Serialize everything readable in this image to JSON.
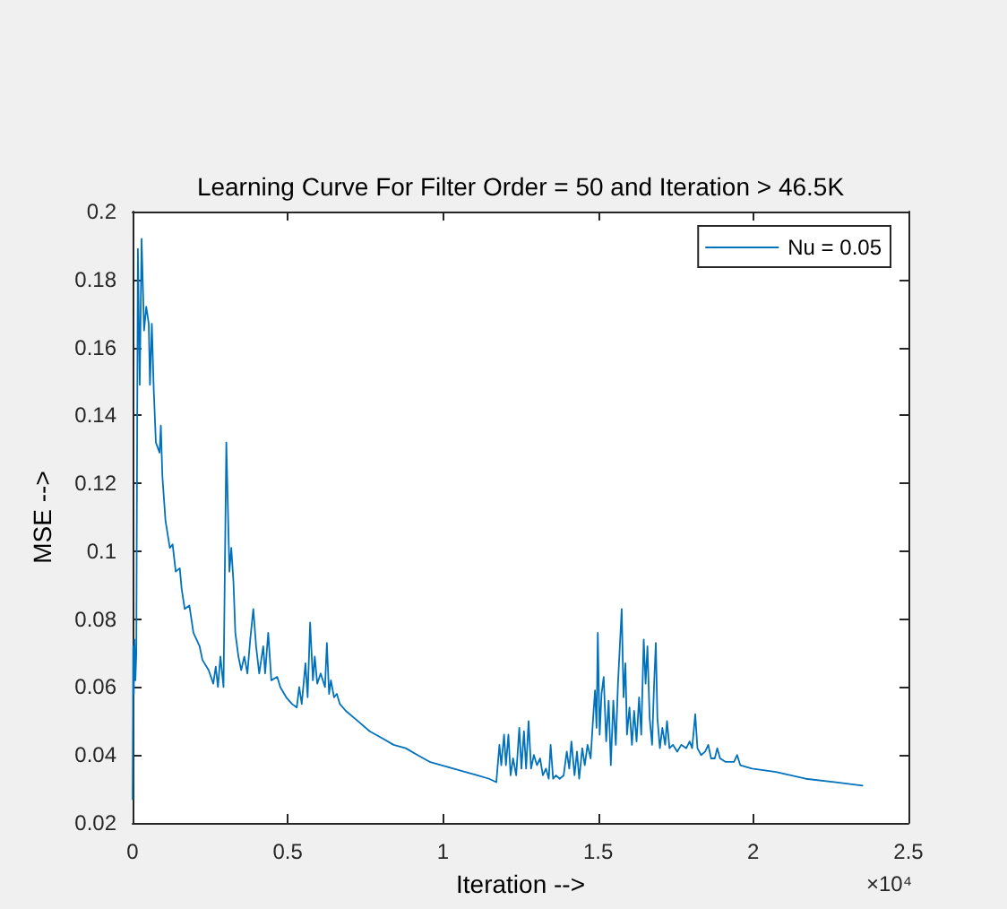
{
  "chart_data": {
    "type": "line",
    "title": "Learning Curve For Filter Order = 50 and Iteration > 46.5K",
    "xlabel": "Iteration -->",
    "ylabel": "MSE -->",
    "annotations": [
      "×10⁴"
    ],
    "x": [
      0,
      0.002,
      0.004,
      0.006,
      0.009,
      0.012,
      0.017,
      0.023,
      0.029,
      0.037,
      0.044,
      0.052,
      0.056,
      0.062,
      0.068,
      0.075,
      0.087,
      0.091,
      0.096,
      0.106,
      0.12,
      0.129,
      0.139,
      0.152,
      0.158,
      0.168,
      0.183,
      0.196,
      0.216,
      0.225,
      0.245,
      0.26,
      0.268,
      0.275,
      0.283,
      0.293,
      0.302,
      0.312,
      0.318,
      0.325,
      0.331,
      0.341,
      0.35,
      0.36,
      0.37,
      0.379,
      0.389,
      0.398,
      0.408,
      0.421,
      0.427,
      0.437,
      0.447,
      0.466,
      0.476,
      0.495,
      0.514,
      0.529,
      0.537,
      0.545,
      0.557,
      0.564,
      0.572,
      0.581,
      0.587,
      0.595,
      0.606,
      0.62,
      0.626,
      0.633,
      0.639,
      0.649,
      0.658,
      0.668,
      0.687,
      0.726,
      0.764,
      0.803,
      0.841,
      0.88,
      0.918,
      0.957,
      0.995,
      1.034,
      1.072,
      1.111,
      1.149,
      1.172,
      1.182,
      1.188,
      1.197,
      1.203,
      1.211,
      1.218,
      1.226,
      1.236,
      1.246,
      1.253,
      1.261,
      1.268,
      1.276,
      1.284,
      1.293,
      1.303,
      1.313,
      1.322,
      1.332,
      1.341,
      1.347,
      1.355,
      1.364,
      1.376,
      1.389,
      1.399,
      1.407,
      1.414,
      1.424,
      1.432,
      1.439,
      1.449,
      1.457,
      1.466,
      1.476,
      1.484,
      1.49,
      1.495,
      1.499,
      1.505,
      1.511,
      1.518,
      1.526,
      1.534,
      1.541,
      1.549,
      1.557,
      1.564,
      1.57,
      1.576,
      1.582,
      1.588,
      1.593,
      1.601,
      1.609,
      1.616,
      1.624,
      1.632,
      1.639,
      1.647,
      1.653,
      1.659,
      1.666,
      1.674,
      1.68,
      1.686,
      1.691,
      1.699,
      1.707,
      1.716,
      1.722,
      1.73,
      1.741,
      1.755,
      1.768,
      1.784,
      1.795,
      1.803,
      1.813,
      1.82,
      1.832,
      1.845,
      1.855,
      1.864,
      1.876,
      1.884,
      1.893,
      1.91,
      1.938,
      1.948,
      1.958,
      1.996,
      2.073,
      2.169,
      2.266,
      2.352
    ],
    "series": [
      {
        "name": "Nu = 0.05",
        "color": "#0072bd",
        "values": [
          0.027,
          0.072,
          0.058,
          0.074,
          0.062,
          0.07,
          0.189,
          0.149,
          0.192,
          0.165,
          0.172,
          0.167,
          0.149,
          0.167,
          0.148,
          0.132,
          0.129,
          0.137,
          0.122,
          0.109,
          0.101,
          0.102,
          0.094,
          0.095,
          0.089,
          0.083,
          0.084,
          0.076,
          0.072,
          0.068,
          0.065,
          0.061,
          0.066,
          0.06,
          0.069,
          0.06,
          0.132,
          0.094,
          0.101,
          0.091,
          0.076,
          0.069,
          0.065,
          0.069,
          0.064,
          0.074,
          0.083,
          0.072,
          0.064,
          0.072,
          0.064,
          0.076,
          0.062,
          0.063,
          0.06,
          0.057,
          0.055,
          0.054,
          0.06,
          0.055,
          0.067,
          0.057,
          0.079,
          0.062,
          0.069,
          0.061,
          0.064,
          0.06,
          0.073,
          0.058,
          0.062,
          0.057,
          0.058,
          0.055,
          0.053,
          0.05,
          0.047,
          0.045,
          0.043,
          0.042,
          0.04,
          0.038,
          0.037,
          0.036,
          0.035,
          0.034,
          0.033,
          0.032,
          0.043,
          0.037,
          0.046,
          0.037,
          0.046,
          0.034,
          0.039,
          0.034,
          0.048,
          0.036,
          0.047,
          0.036,
          0.05,
          0.036,
          0.04,
          0.037,
          0.039,
          0.034,
          0.036,
          0.033,
          0.043,
          0.033,
          0.034,
          0.033,
          0.034,
          0.041,
          0.036,
          0.044,
          0.034,
          0.041,
          0.033,
          0.042,
          0.037,
          0.043,
          0.039,
          0.051,
          0.059,
          0.048,
          0.076,
          0.046,
          0.058,
          0.063,
          0.044,
          0.056,
          0.037,
          0.056,
          0.043,
          0.061,
          0.072,
          0.083,
          0.057,
          0.067,
          0.046,
          0.054,
          0.043,
          0.053,
          0.044,
          0.057,
          0.046,
          0.074,
          0.061,
          0.072,
          0.051,
          0.043,
          0.06,
          0.073,
          0.051,
          0.042,
          0.048,
          0.043,
          0.05,
          0.042,
          0.043,
          0.041,
          0.043,
          0.042,
          0.044,
          0.042,
          0.052,
          0.042,
          0.04,
          0.041,
          0.043,
          0.039,
          0.039,
          0.042,
          0.039,
          0.038,
          0.038,
          0.04,
          0.037,
          0.036,
          0.035,
          0.033,
          0.032,
          0.031
        ]
      }
    ],
    "xlim": [
      0,
      2.5
    ],
    "xticks": [
      0,
      0.5,
      1,
      1.5,
      2,
      2.5
    ],
    "ylim": [
      0.02,
      0.2
    ],
    "yticks": [
      0.02,
      0.04,
      0.06,
      0.08,
      0.1,
      0.12,
      0.14,
      0.16,
      0.18,
      0.2
    ],
    "legend": "top right"
  }
}
